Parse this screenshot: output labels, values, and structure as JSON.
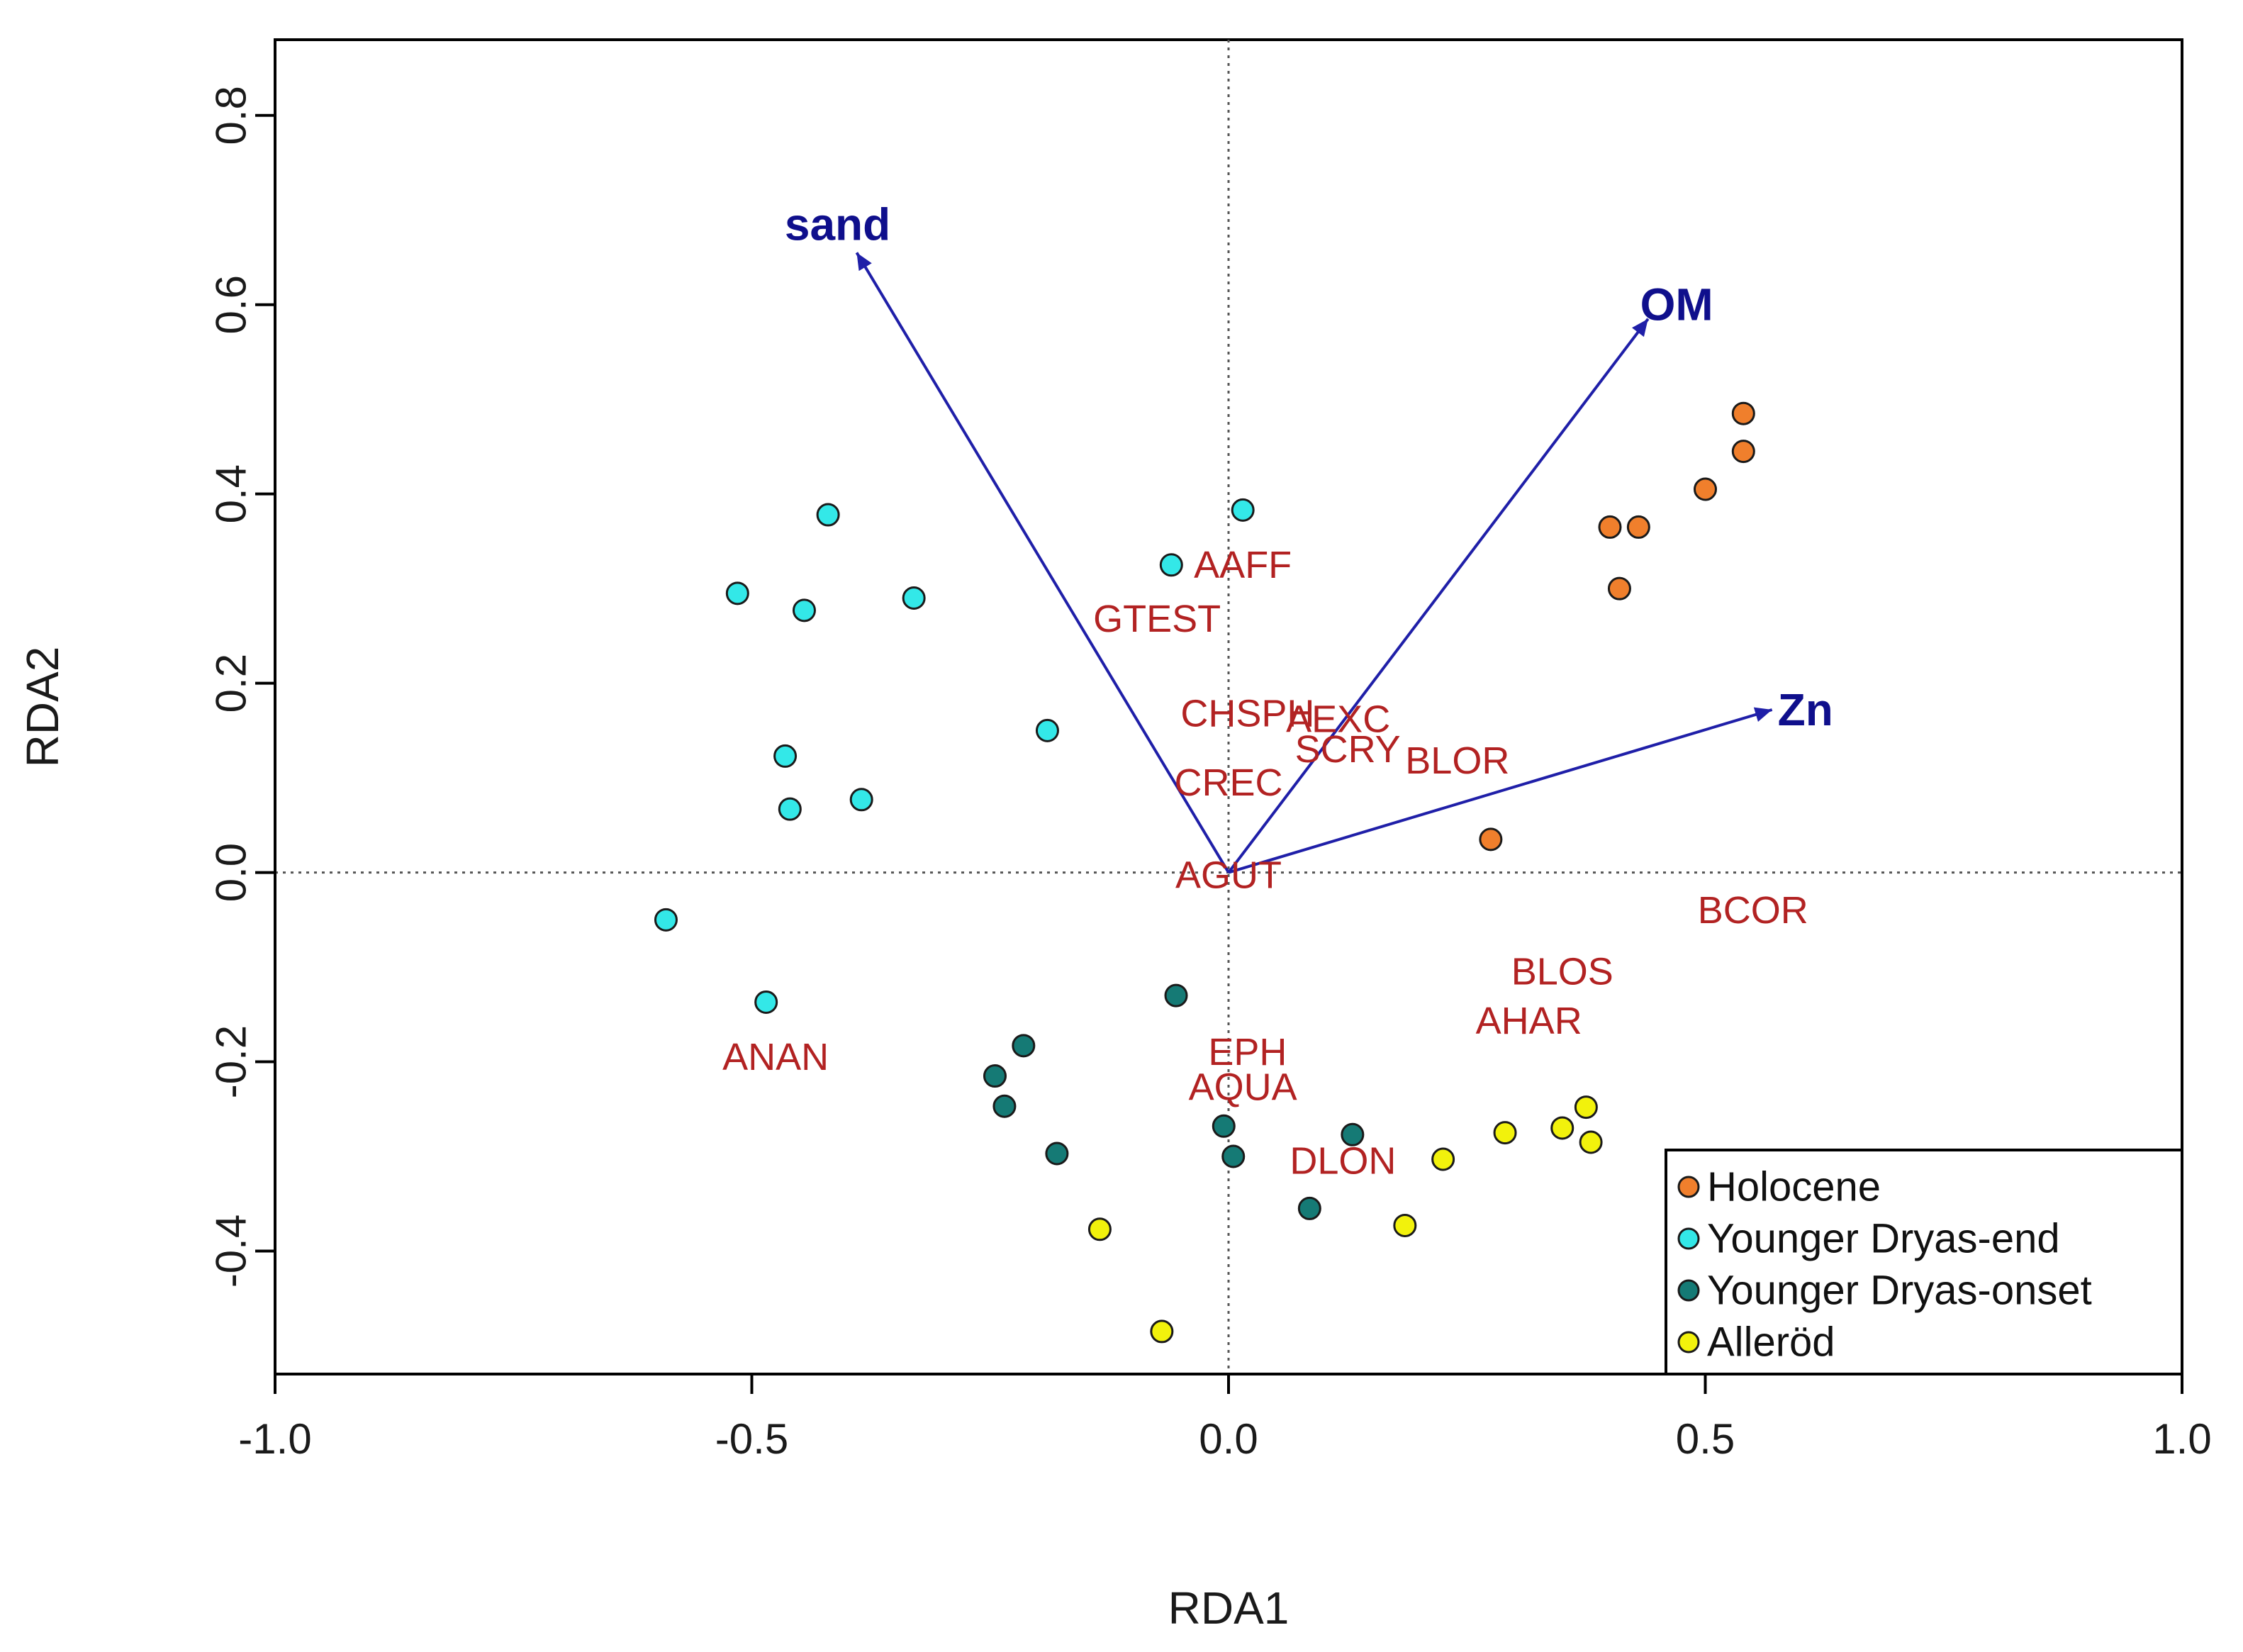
{
  "chart_data": {
    "type": "scatter",
    "title": "",
    "xlabel": "RDA1",
    "ylabel": "RDA2",
    "xlim": [
      -1.0,
      1.0
    ],
    "ylim": [
      -0.53,
      0.88
    ],
    "x_ticks": [
      -1.0,
      -0.5,
      0.0,
      0.5,
      1.0
    ],
    "x_tick_labels": [
      "-1.0",
      "-0.5",
      "0.0",
      "0.5",
      "1.0"
    ],
    "y_ticks": [
      -0.4,
      -0.2,
      0.0,
      0.2,
      0.4,
      0.6,
      0.8
    ],
    "y_tick_labels": [
      "-0.4",
      "-0.2",
      "0.0",
      "0.2",
      "0.4",
      "0.6",
      "0.8"
    ],
    "reference_lines": {
      "x": 0,
      "y": 0,
      "style": "dotted"
    },
    "legend_position": "bottom-right",
    "series": [
      {
        "name": "Holocene",
        "color": "#f07f2c",
        "points": [
          [
            0.54,
            0.485
          ],
          [
            0.54,
            0.445
          ],
          [
            0.5,
            0.405
          ],
          [
            0.4,
            0.365
          ],
          [
            0.43,
            0.365
          ],
          [
            0.41,
            0.3
          ],
          [
            0.275,
            0.035
          ]
        ]
      },
      {
        "name": "Younger Dryas-end",
        "color": "#33e8e8",
        "points": [
          [
            -0.42,
            0.378
          ],
          [
            0.015,
            0.383
          ],
          [
            -0.06,
            0.325
          ],
          [
            -0.515,
            0.295
          ],
          [
            -0.445,
            0.277
          ],
          [
            -0.33,
            0.29
          ],
          [
            -0.19,
            0.15
          ],
          [
            -0.465,
            0.123
          ],
          [
            -0.46,
            0.067
          ],
          [
            -0.385,
            0.077
          ],
          [
            -0.59,
            -0.05
          ],
          [
            -0.485,
            -0.137
          ]
        ]
      },
      {
        "name": "Younger Dryas-onset",
        "color": "#157a75",
        "points": [
          [
            -0.055,
            -0.13
          ],
          [
            -0.215,
            -0.183
          ],
          [
            -0.245,
            -0.215
          ],
          [
            -0.235,
            -0.247
          ],
          [
            -0.18,
            -0.297
          ],
          [
            -0.005,
            -0.268
          ],
          [
            0.005,
            -0.3
          ],
          [
            0.13,
            -0.277
          ],
          [
            0.085,
            -0.355
          ]
        ]
      },
      {
        "name": "Alleröd",
        "color": "#f2f20c",
        "points": [
          [
            0.225,
            -0.303
          ],
          [
            0.29,
            -0.275
          ],
          [
            0.35,
            -0.27
          ],
          [
            0.375,
            -0.248
          ],
          [
            0.38,
            -0.285
          ],
          [
            0.185,
            -0.373
          ],
          [
            -0.135,
            -0.377
          ],
          [
            -0.07,
            -0.485
          ]
        ]
      }
    ],
    "species": [
      {
        "label": "AAFF",
        "x": 0.015,
        "y": 0.325
      },
      {
        "label": "GTEST",
        "x": -0.075,
        "y": 0.268
      },
      {
        "label": "CHSPH",
        "x": 0.02,
        "y": 0.168
      },
      {
        "label": "AEXC",
        "x": 0.115,
        "y": 0.162
      },
      {
        "label": "SCRY",
        "x": 0.125,
        "y": 0.13
      },
      {
        "label": "BLOR",
        "x": 0.24,
        "y": 0.118
      },
      {
        "label": "CREC",
        "x": 0.0,
        "y": 0.095
      },
      {
        "label": "AGUT",
        "x": 0.0,
        "y": -0.003
      },
      {
        "label": "BCOR",
        "x": 0.55,
        "y": -0.04
      },
      {
        "label": "BLOS",
        "x": 0.35,
        "y": -0.105
      },
      {
        "label": "AHAR",
        "x": 0.315,
        "y": -0.157
      },
      {
        "label": "EPH",
        "x": 0.02,
        "y": -0.19
      },
      {
        "label": "AQUA",
        "x": 0.015,
        "y": -0.227
      },
      {
        "label": "DLON",
        "x": 0.12,
        "y": -0.305
      },
      {
        "label": "ANAN",
        "x": -0.475,
        "y": -0.195
      }
    ],
    "arrows": [
      {
        "label": "sand",
        "x": -0.39,
        "y": 0.655,
        "label_x": -0.41,
        "label_y": 0.685
      },
      {
        "label": "OM",
        "x": 0.44,
        "y": 0.585,
        "label_x": 0.47,
        "label_y": 0.6
      },
      {
        "label": "Zn",
        "x": 0.57,
        "y": 0.172,
        "label_x": 0.605,
        "label_y": 0.172
      }
    ]
  },
  "colors": {
    "arrow": "#1f1fa8",
    "arrow_label": "#0f0f8c",
    "species_label": "#b22222",
    "axis": "#000000"
  }
}
